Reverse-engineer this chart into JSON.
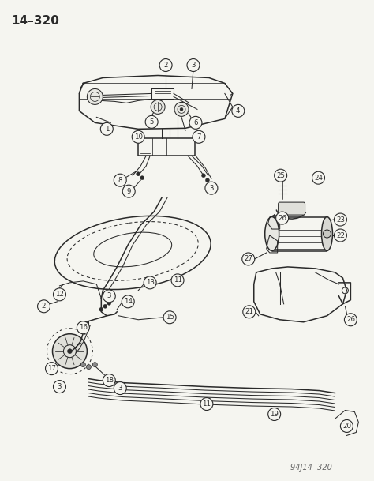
{
  "title": "14–320",
  "bg_color": "#f5f5f0",
  "line_color": "#2a2a2a",
  "watermark": "94J14  320",
  "fig_width": 4.74,
  "fig_height": 6.09,
  "dpi": 100
}
